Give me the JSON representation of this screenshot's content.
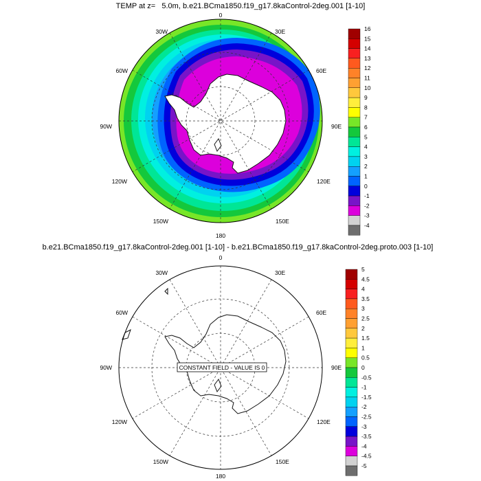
{
  "top_map": {
    "title": "TEMP at z=   5.0m, b.e21.BCma1850.f19_g17.8kaControl-2deg.001 [1-10]",
    "lon_labels": [
      "0",
      "30E",
      "60E",
      "90E",
      "120E",
      "150E",
      "180",
      "150W",
      "120W",
      "90W",
      "60W",
      "30W"
    ],
    "colorbar": {
      "labels": [
        "16",
        "15",
        "14",
        "13",
        "12",
        "11",
        "10",
        "9",
        "8",
        "7",
        "6",
        "5",
        "4",
        "3",
        "2",
        "1",
        "0",
        "-1",
        "-2",
        "-3",
        "-4"
      ],
      "colors": [
        "#a00000",
        "#d40000",
        "#f82020",
        "#ff5a1e",
        "#ff8228",
        "#ffa032",
        "#ffc83c",
        "#ffee3c",
        "#ffff00",
        "#78e628",
        "#14c83c",
        "#00e696",
        "#00f0e0",
        "#00d2f0",
        "#14a0ff",
        "#0064ff",
        "#0000dc",
        "#7814c8",
        "#dc00dc",
        "#d2d2d2",
        "#6e6e6e"
      ]
    }
  },
  "bottom_map": {
    "title": "b.e21.BCma1850.f19_g17.8kaControl-2deg.001 [1-10] - b.e21.BCma1850.f19_g17.8kaControl-2deg.proto.003 [1-10]",
    "lon_labels": [
      "0",
      "30E",
      "60E",
      "90E",
      "120E",
      "150E",
      "180",
      "150W",
      "120W",
      "90W",
      "60W",
      "30W"
    ],
    "center_note": "CONSTANT FIELD - VALUE IS 0",
    "colorbar": {
      "labels": [
        "5",
        "4.5",
        "4",
        "3.5",
        "3",
        "2.5",
        "2",
        "1.5",
        "1",
        "0.5",
        "0",
        "-0.5",
        "-1",
        "-1.5",
        "-2",
        "-2.5",
        "-3",
        "-3.5",
        "-4",
        "-4.5",
        "-5"
      ],
      "colors": [
        "#a00000",
        "#d40000",
        "#f82020",
        "#ff5a1e",
        "#ff8228",
        "#ffa032",
        "#ffc83c",
        "#ffee3c",
        "#ffff00",
        "#78e628",
        "#14c83c",
        "#00e696",
        "#00f0e0",
        "#00d2f0",
        "#14a0ff",
        "#0064ff",
        "#0000dc",
        "#7814c8",
        "#dc00dc",
        "#d2d2d2",
        "#6e6e6e"
      ]
    }
  }
}
